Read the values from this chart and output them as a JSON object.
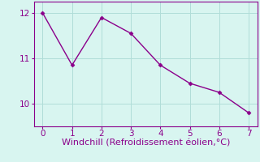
{
  "x": [
    0,
    1,
    2,
    3,
    4,
    5,
    6,
    7
  ],
  "y": [
    12.0,
    10.85,
    11.9,
    11.55,
    10.85,
    10.45,
    10.25,
    9.8
  ],
  "line_color": "#8B008B",
  "marker": "D",
  "marker_size": 2.5,
  "background_color": "#d8f5f0",
  "grid_color": "#b0ddd8",
  "xlabel": "Windchill (Refroidissement éolien,°C)",
  "xlabel_color": "#8B008B",
  "xlabel_fontsize": 8,
  "xticks": [
    0,
    1,
    2,
    3,
    4,
    5,
    6,
    7
  ],
  "yticks": [
    10,
    11,
    12
  ],
  "xlim": [
    -0.3,
    7.3
  ],
  "ylim": [
    9.5,
    12.25
  ],
  "tick_color": "#8B008B",
  "tick_fontsize": 7.5,
  "spine_color": "#8B008B",
  "linewidth": 1.0
}
